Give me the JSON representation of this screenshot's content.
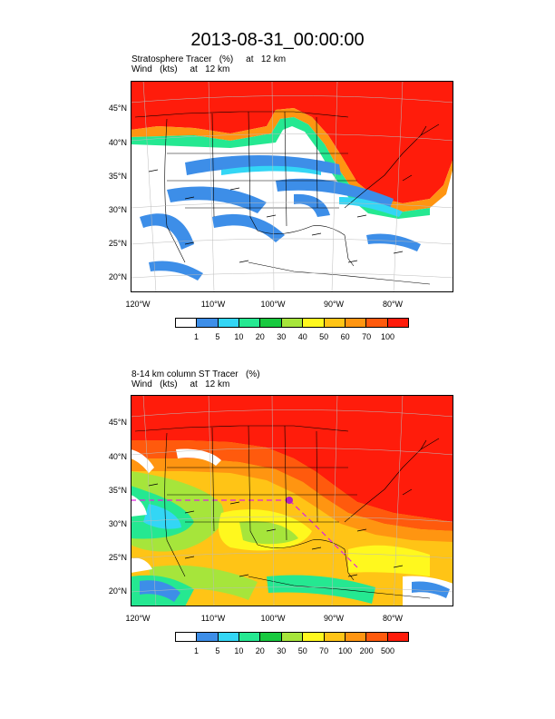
{
  "title": "2013-08-31_00:00:00",
  "panels": [
    {
      "subtitle_line1": "Stratosphere Tracer   (%)     at   12 km",
      "subtitle_line2": "Wind   (kts)     at   12 km",
      "lat_labels": [
        "45°N",
        "40°N",
        "35°N",
        "30°N",
        "25°N",
        "20°N"
      ],
      "lon_labels": [
        "120°W",
        "110°W",
        "100°W",
        "90°W",
        "80°W"
      ],
      "colorbar_labels": [
        "1",
        "5",
        "10",
        "20",
        "30",
        "40",
        "50",
        "60",
        "70",
        "100"
      ],
      "colorbar_colors": [
        "#ffffff",
        "#3d8ee8",
        "#33d6f5",
        "#25e891",
        "#18c93f",
        "#a6e53b",
        "#fff81e",
        "#ffc416",
        "#ff9511",
        "#ff5a0d",
        "#ff1c0b"
      ]
    },
    {
      "subtitle_line1": "8-14 km column ST Tracer   (%)",
      "subtitle_line2": "Wind   (kts)     at   12 km",
      "lat_labels": [
        "45°N",
        "40°N",
        "35°N",
        "30°N",
        "25°N",
        "20°N"
      ],
      "lon_labels": [
        "120°W",
        "110°W",
        "100°W",
        "90°W",
        "80°W"
      ],
      "colorbar_labels": [
        "1",
        "5",
        "10",
        "20",
        "30",
        "50",
        "70",
        "100",
        "200",
        "500"
      ],
      "colorbar_colors": [
        "#ffffff",
        "#3d8ee8",
        "#33d6f5",
        "#25e891",
        "#18c93f",
        "#a6e53b",
        "#fff81e",
        "#ffc416",
        "#ff9511",
        "#ff5a0d",
        "#ff1c0b"
      ]
    }
  ]
}
